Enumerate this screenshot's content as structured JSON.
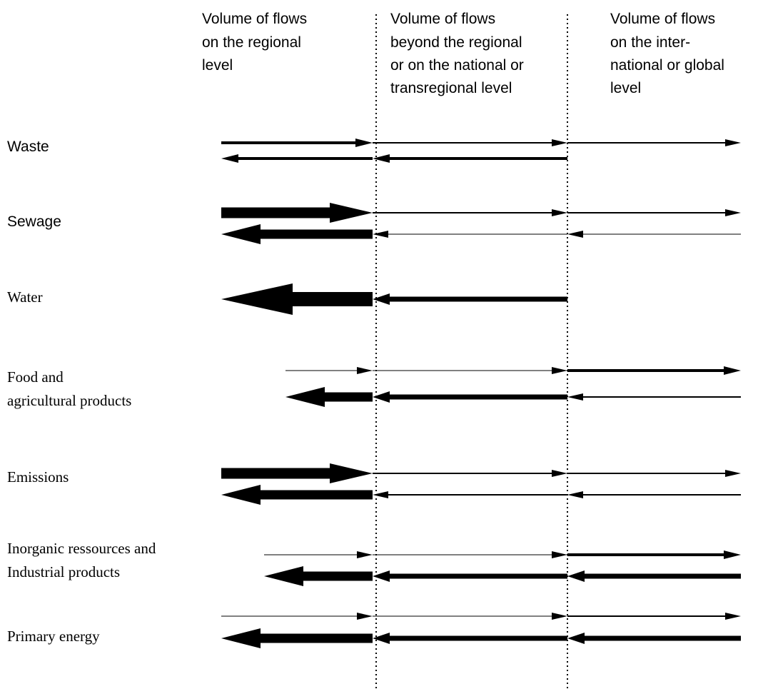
{
  "headers": [
    [
      "Volume of flows",
      "on the regional",
      "level"
    ],
    [
      "Volume of flows",
      "beyond the regional",
      "or on the national or",
      "transregional level"
    ],
    [
      "Volume of flows",
      "on the inter-",
      "national or global",
      "level"
    ]
  ],
  "rows": [
    {
      "label": [
        "Waste"
      ],
      "font": "sans",
      "outbound": {
        "regional": "medium",
        "national": "thin",
        "global": "thin"
      },
      "inbound": {
        "regional": "medium",
        "national": "medium",
        "global": "none"
      }
    },
    {
      "label": [
        "Sewage"
      ],
      "font": "sans",
      "outbound": {
        "regional": "very-thick",
        "national": "thin",
        "global": "thin"
      },
      "inbound": {
        "regional": "thick",
        "national": "hairline",
        "global": "hairline"
      }
    },
    {
      "label": [
        "Water"
      ],
      "font": "serif",
      "outbound": {
        "regional": "none",
        "national": "none",
        "global": "none"
      },
      "inbound": {
        "regional": "extra-thick",
        "national": "thick-line",
        "global": "none"
      }
    },
    {
      "label": [
        "Food and",
        "agricultural products"
      ],
      "font": "serif",
      "outbound": {
        "regional": "hairline-partial",
        "national": "hairline",
        "global": "medium"
      },
      "inbound": {
        "regional": "thick",
        "national": "thick-line",
        "global": "thin"
      }
    },
    {
      "label": [
        "Emissions"
      ],
      "font": "serif",
      "outbound": {
        "regional": "very-thick",
        "national": "thin",
        "global": "thin"
      },
      "inbound": {
        "regional": "thick",
        "national": "thin",
        "global": "thin"
      }
    },
    {
      "label": [
        "Inorganic ressources and",
        "Industrial products"
      ],
      "font": "serif",
      "outbound": {
        "regional": "hairline-partial",
        "national": "hairline",
        "global": "medium"
      },
      "inbound": {
        "regional": "thick",
        "national": "thick-line",
        "global": "thick-line"
      }
    },
    {
      "label": [
        "Primary energy"
      ],
      "font": "serif",
      "outbound": {
        "regional": "hairline",
        "national": "hairline",
        "global": "thin"
      },
      "inbound": {
        "regional": "thick",
        "national": "thick-line",
        "global": "thick-line"
      }
    }
  ]
}
